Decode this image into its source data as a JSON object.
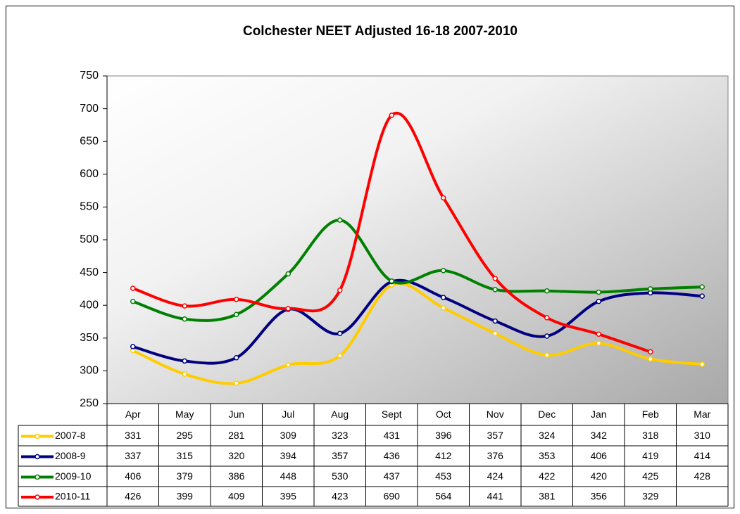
{
  "chart_data": {
    "type": "line",
    "title": "Colchester NEET Adjusted 16-18 2007-2010",
    "categories": [
      "Apr",
      "May",
      "Jun",
      "Jul",
      "Aug",
      "Sept",
      "Oct",
      "Nov",
      "Dec",
      "Jan",
      "Feb",
      "Mar"
    ],
    "series": [
      {
        "name": "2007-8",
        "color": "#ffcc00",
        "values": [
          331,
          295,
          281,
          309,
          323,
          431,
          396,
          357,
          324,
          342,
          318,
          310
        ]
      },
      {
        "name": "2008-9",
        "color": "#000080",
        "values": [
          337,
          315,
          320,
          394,
          357,
          436,
          412,
          376,
          353,
          406,
          419,
          414
        ]
      },
      {
        "name": "2009-10",
        "color": "#008000",
        "values": [
          406,
          379,
          386,
          448,
          530,
          437,
          453,
          424,
          422,
          420,
          425,
          428
        ]
      },
      {
        "name": "2010-11",
        "color": "#ff0000",
        "values": [
          426,
          399,
          409,
          395,
          423,
          690,
          564,
          441,
          381,
          356,
          329,
          null
        ]
      }
    ],
    "ylim": [
      250,
      750
    ],
    "yticks": [
      250,
      300,
      350,
      400,
      450,
      500,
      550,
      600,
      650,
      700,
      750
    ],
    "smooth": true,
    "data_table": true
  }
}
